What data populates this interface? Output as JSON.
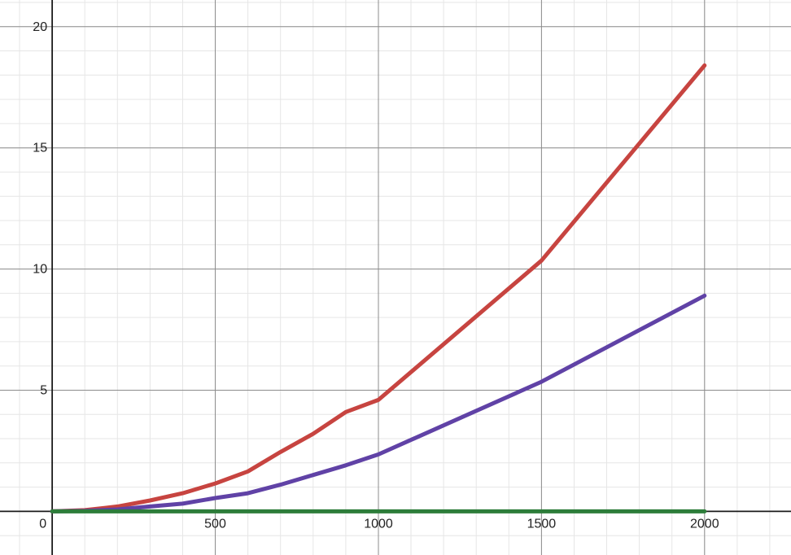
{
  "chart_data": {
    "type": "line",
    "title": "",
    "xlabel": "",
    "ylabel": "",
    "xlim": [
      -160,
      2265
    ],
    "ylim": [
      -1.8,
      21.1
    ],
    "grid": true,
    "x_ticks": [
      0,
      500,
      1000,
      1500,
      2000
    ],
    "y_ticks": [
      5,
      10,
      15,
      20
    ],
    "x_tick_labels": [
      "0",
      "500",
      "1000",
      "1500",
      "2000"
    ],
    "y_tick_labels": [
      "5",
      "10",
      "15",
      "20"
    ],
    "series": [
      {
        "color": "#c74440",
        "x": [
          0,
          100,
          200,
          300,
          400,
          500,
          600,
          700,
          800,
          900,
          1000,
          1500,
          2000
        ],
        "y": [
          0,
          0.05,
          0.2,
          0.45,
          0.75,
          1.15,
          1.65,
          2.45,
          3.2,
          4.1,
          4.6,
          10.35,
          18.4
        ]
      },
      {
        "color": "#6042a6",
        "x": [
          0,
          100,
          200,
          300,
          400,
          500,
          600,
          700,
          800,
          900,
          1000,
          1500,
          2000
        ],
        "y": [
          0,
          0.02,
          0.08,
          0.2,
          0.32,
          0.55,
          0.75,
          1.1,
          1.5,
          1.9,
          2.35,
          5.35,
          8.9
        ]
      },
      {
        "color": "#2d7d3a",
        "x": [
          0,
          500,
          1000,
          1500,
          2000
        ],
        "y": [
          0,
          0,
          0,
          0,
          0
        ]
      }
    ]
  }
}
